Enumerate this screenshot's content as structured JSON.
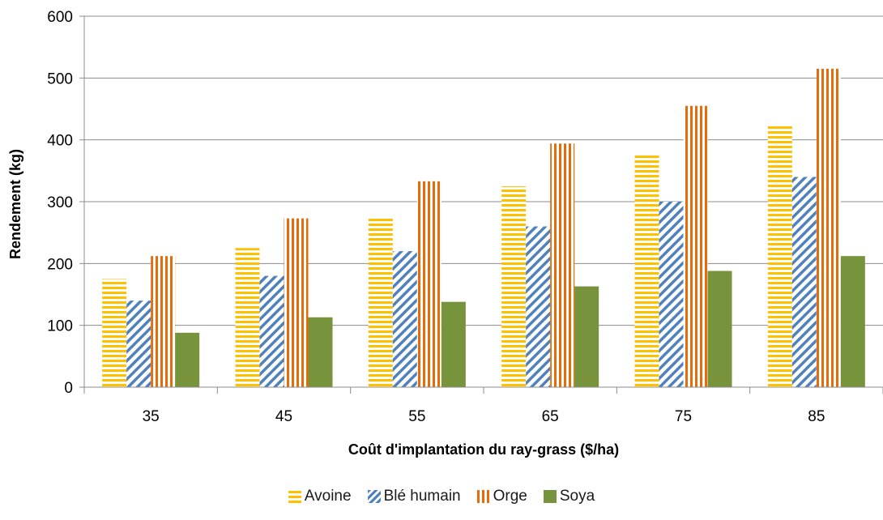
{
  "chart_data": {
    "type": "bar",
    "title": "",
    "xlabel": "Coût d'implantation du ray-grass ($/ha)",
    "ylabel": "Rendement (kg)",
    "categories": [
      "35",
      "45",
      "55",
      "65",
      "75",
      "85"
    ],
    "ylim": [
      0,
      600
    ],
    "yticks": [
      "0",
      "100",
      "200",
      "300",
      "400",
      "500",
      "600"
    ],
    "grid": true,
    "legend_position": "bottom",
    "series": [
      {
        "name": "Avoine",
        "color": "#FFC000",
        "pattern": "horizontal-stripes",
        "values": [
          175,
          225,
          275,
          325,
          375,
          425
        ]
      },
      {
        "name": "Blé humain",
        "color": "#4F81BD",
        "pattern": "diagonal-stripes",
        "values": [
          140,
          180,
          220,
          260,
          300,
          340
        ]
      },
      {
        "name": "Orge",
        "color": "#E46C0A",
        "pattern": "vertical-stripes",
        "values": [
          212,
          273,
          333,
          394,
          455,
          515
        ]
      },
      {
        "name": "Soya",
        "color": "#77933C",
        "pattern": "solid",
        "values": [
          88,
          113,
          138,
          163,
          188,
          212
        ]
      }
    ]
  }
}
